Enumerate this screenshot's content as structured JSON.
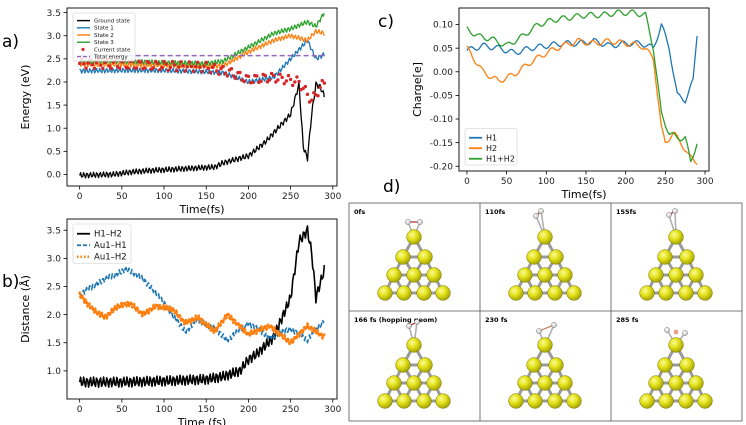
{
  "panels": {
    "a": {
      "label": "a)"
    },
    "b": {
      "label": "b)"
    },
    "c": {
      "label": "c)"
    },
    "d": {
      "label": "d)"
    }
  },
  "chart_data": [
    {
      "id": "a",
      "type": "line",
      "title": "",
      "xlabel": "Time(fs)",
      "ylabel": "Energy (eV)",
      "xlim": [
        -15,
        305
      ],
      "ylim": [
        -0.25,
        3.6
      ],
      "xticks": [
        0,
        50,
        100,
        150,
        200,
        250,
        300
      ],
      "yticks": [
        0.0,
        0.5,
        1.0,
        1.5,
        2.0,
        2.5,
        3.0,
        3.5
      ],
      "legend_position": "top-left",
      "legend": [
        "Ground state",
        "State 1",
        "State 2",
        "State 3",
        "Current state",
        "Total energy"
      ],
      "series": [
        {
          "name": "Ground state",
          "color": "#000000",
          "x": [
            0,
            20,
            40,
            60,
            80,
            100,
            120,
            140,
            160,
            170,
            180,
            190,
            200,
            210,
            220,
            230,
            240,
            250,
            260,
            265,
            270,
            275,
            280,
            285,
            290
          ],
          "y": [
            -0.02,
            -0.01,
            0.0,
            0.05,
            0.08,
            0.1,
            0.12,
            0.14,
            0.16,
            0.25,
            0.3,
            0.35,
            0.4,
            0.55,
            0.7,
            0.9,
            1.1,
            1.3,
            1.95,
            0.6,
            0.35,
            1.3,
            1.95,
            1.9,
            1.7
          ]
        },
        {
          "name": "State 1",
          "color": "#1f77b4",
          "x": [
            0,
            50,
            100,
            150,
            170,
            200,
            230,
            250,
            270,
            280,
            290
          ],
          "y": [
            2.24,
            2.25,
            2.25,
            2.22,
            2.2,
            2.0,
            2.1,
            2.5,
            2.9,
            2.5,
            2.6
          ]
        },
        {
          "name": "State 2",
          "color": "#ff7f0e",
          "x": [
            0,
            50,
            100,
            150,
            170,
            200,
            230,
            250,
            270,
            280,
            290
          ],
          "y": [
            2.38,
            2.38,
            2.36,
            2.34,
            2.35,
            2.65,
            2.9,
            3.0,
            2.9,
            3.1,
            3.05
          ]
        },
        {
          "name": "State 3",
          "color": "#2ca02c",
          "x": [
            0,
            50,
            100,
            150,
            170,
            200,
            230,
            250,
            270,
            280,
            290
          ],
          "y": [
            2.45,
            2.45,
            2.42,
            2.4,
            2.45,
            2.75,
            3.05,
            3.15,
            3.3,
            3.2,
            3.5
          ]
        },
        {
          "name": "Current state",
          "color": "#d62728",
          "x": [
            0,
            50,
            100,
            150,
            180,
            200,
            230,
            260,
            275,
            290
          ],
          "y": [
            2.4,
            2.38,
            2.35,
            2.32,
            2.2,
            2.05,
            2.1,
            2.0,
            1.6,
            2.0
          ]
        },
        {
          "name": "Total energy",
          "color": "#9467bd",
          "x": [
            0,
            290
          ],
          "y": [
            2.57,
            2.57
          ]
        }
      ]
    },
    {
      "id": "b",
      "type": "line",
      "title": "",
      "xlabel": "Time (fs)",
      "ylabel": "Distance (Å)",
      "xlim": [
        -15,
        305
      ],
      "ylim": [
        0.5,
        3.7
      ],
      "xticks": [
        0,
        50,
        100,
        150,
        200,
        250,
        300
      ],
      "yticks": [
        1.0,
        1.5,
        2.0,
        2.5,
        3.0,
        3.5
      ],
      "legend_position": "top-left",
      "legend": [
        "H1–H2",
        "Au1–H1",
        "Au1–H2"
      ],
      "series": [
        {
          "name": "H1–H2",
          "color": "#000000",
          "style": "solid",
          "x": [
            0,
            20,
            50,
            100,
            150,
            170,
            190,
            200,
            210,
            230,
            250,
            260,
            270,
            275,
            280,
            290
          ],
          "y": [
            0.8,
            0.8,
            0.8,
            0.82,
            0.85,
            0.9,
            1.0,
            1.2,
            1.3,
            1.6,
            2.3,
            3.3,
            3.5,
            3.1,
            2.3,
            2.8
          ]
        },
        {
          "name": "Au1–H1",
          "color": "#1f77b4",
          "style": "dashed",
          "x": [
            0,
            20,
            40,
            55,
            70,
            90,
            110,
            125,
            140,
            160,
            175,
            200,
            225,
            250,
            270,
            290
          ],
          "y": [
            2.35,
            2.55,
            2.7,
            2.8,
            2.7,
            2.4,
            2.0,
            1.7,
            1.9,
            1.75,
            1.55,
            1.85,
            1.6,
            1.75,
            1.55,
            1.9
          ]
        },
        {
          "name": "Au1–H2",
          "color": "#ff7f0e",
          "style": "dotted",
          "x": [
            0,
            15,
            30,
            45,
            60,
            75,
            90,
            110,
            125,
            140,
            160,
            175,
            200,
            225,
            250,
            270,
            290
          ],
          "y": [
            2.35,
            2.1,
            1.95,
            2.15,
            2.2,
            2.0,
            2.15,
            2.1,
            1.85,
            1.95,
            1.7,
            2.0,
            1.65,
            1.8,
            1.5,
            1.8,
            1.6
          ]
        }
      ]
    },
    {
      "id": "c",
      "type": "line",
      "title": "",
      "xlabel": "Time(fs)",
      "ylabel": "Charge[e]",
      "xlim": [
        -10,
        305
      ],
      "ylim": [
        -0.21,
        0.135
      ],
      "xticks": [
        0,
        50,
        100,
        150,
        200,
        250,
        300
      ],
      "yticks": [
        0.1,
        0.05,
        0.0,
        -0.05,
        -0.1,
        -0.15,
        -0.2
      ],
      "legend_position": "bottom-left",
      "legend": [
        "H1",
        "H2",
        "H1+H2"
      ],
      "series": [
        {
          "name": "H1",
          "color": "#1f77b4",
          "x": [
            0,
            20,
            40,
            60,
            80,
            100,
            120,
            140,
            160,
            180,
            200,
            220,
            235,
            245,
            255,
            265,
            275,
            285,
            290
          ],
          "y": [
            0.045,
            0.055,
            0.05,
            0.04,
            0.05,
            0.055,
            0.06,
            0.06,
            0.065,
            0.055,
            0.06,
            0.06,
            0.05,
            0.1,
            0.05,
            -0.05,
            -0.06,
            -0.02,
            0.08
          ]
        },
        {
          "name": "H2",
          "color": "#ff7f0e",
          "x": [
            0,
            20,
            40,
            60,
            80,
            100,
            120,
            140,
            160,
            180,
            200,
            220,
            235,
            245,
            250,
            260,
            270,
            280,
            290
          ],
          "y": [
            0.05,
            0.0,
            -0.02,
            -0.005,
            0.02,
            0.04,
            0.055,
            0.065,
            0.06,
            0.065,
            0.06,
            0.055,
            0.03,
            -0.12,
            -0.15,
            -0.13,
            -0.15,
            -0.18,
            -0.19
          ]
        },
        {
          "name": "H1+H2",
          "color": "#2ca02c",
          "x": [
            0,
            15,
            30,
            50,
            70,
            90,
            110,
            130,
            150,
            170,
            190,
            210,
            225,
            235,
            245,
            255,
            265,
            275,
            282,
            290
          ],
          "y": [
            0.09,
            0.075,
            0.07,
            0.055,
            0.075,
            0.1,
            0.11,
            0.115,
            0.12,
            0.12,
            0.125,
            0.125,
            0.12,
            0.05,
            -0.09,
            -0.13,
            -0.14,
            -0.14,
            -0.19,
            -0.15
          ]
        }
      ]
    }
  ],
  "snapshots": [
    {
      "label": "0fs"
    },
    {
      "label": "110fs"
    },
    {
      "label": "155fs"
    },
    {
      "label": "166 fs (hopping geom)"
    },
    {
      "label": "230 fs"
    },
    {
      "label": "285 fs"
    }
  ]
}
